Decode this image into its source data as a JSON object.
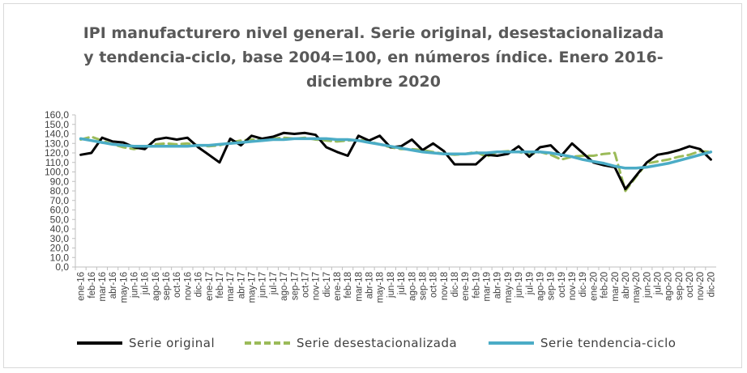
{
  "chart_data": {
    "type": "line",
    "title_lines": [
      "IPI manufacturero nivel general. Serie original, desestacionalizada",
      "y tendencia-ciclo, base 2004=100,  en números índice. Enero 2016-",
      "diciembre 2020"
    ],
    "xlabel": "",
    "ylabel": "",
    "ylim": [
      0,
      160
    ],
    "y_ticks": [
      "0,0",
      "10,0",
      "20,0",
      "30,0",
      "40,0",
      "50,0",
      "60,0",
      "70,0",
      "80,0",
      "90,0",
      "100,0",
      "110,0",
      "120,0",
      "130,0",
      "140,0",
      "150,0",
      "160,0"
    ],
    "grid": false,
    "legend_position": "bottom",
    "categories": [
      "ene-16",
      "feb-16",
      "mar-16",
      "abr-16",
      "may-16",
      "jun-16",
      "jul-16",
      "ago-16",
      "sep-16",
      "oct-16",
      "nov-16",
      "dic-16",
      "ene-17",
      "feb-17",
      "mar-17",
      "abr-17",
      "may-17",
      "jun-17",
      "jul-17",
      "ago-17",
      "sep-17",
      "oct-17",
      "nov-17",
      "dic-17",
      "ene-18",
      "feb-18",
      "mar-18",
      "abr-18",
      "may-18",
      "jun-18",
      "jul-18",
      "ago-18",
      "sep-18",
      "oct-18",
      "nov-18",
      "dic-18",
      "ene-19",
      "feb-19",
      "mar-19",
      "abr-19",
      "may-19",
      "jun-19",
      "jul-19",
      "ago-19",
      "sep-19",
      "oct-19",
      "nov-19",
      "dic-19",
      "ene-20",
      "feb-20",
      "mar-20",
      "abr-20",
      "may-20",
      "jun-20",
      "jul-20",
      "ago-20",
      "sep-20",
      "oct-20",
      "nov-20",
      "dic-20"
    ],
    "series": [
      {
        "name": "Serie original",
        "color": "#000000",
        "dash": "solid",
        "values": [
          118,
          120,
          136,
          132,
          131,
          126,
          124,
          134,
          136,
          134,
          136,
          126,
          118,
          110,
          135,
          128,
          138,
          135,
          137,
          141,
          140,
          141,
          139,
          126,
          121,
          117,
          138,
          133,
          138,
          126,
          127,
          134,
          123,
          130,
          122,
          108,
          108,
          108,
          118,
          117,
          119,
          127,
          116,
          126,
          128,
          117,
          130,
          120,
          110,
          107,
          105,
          82,
          96,
          110,
          118,
          120,
          123,
          127,
          124,
          113
        ],
        "bar_axis_labels_note": ""
      },
      {
        "name": "Serie desestacionalizada",
        "color": "#9bbb59",
        "dash": "dashed",
        "values": [
          134,
          137,
          133,
          129,
          126,
          124,
          127,
          129,
          130,
          129,
          130,
          128,
          127,
          128,
          131,
          133,
          134,
          134,
          135,
          136,
          135,
          136,
          134,
          133,
          132,
          133,
          134,
          132,
          129,
          126,
          124,
          124,
          123,
          121,
          119,
          118,
          119,
          121,
          116,
          121,
          122,
          121,
          118,
          121,
          118,
          113,
          116,
          117,
          117,
          119,
          120,
          80,
          95,
          109,
          111,
          113,
          116,
          118,
          122,
          121
        ]
      },
      {
        "name": "Serie tendencia-ciclo",
        "color": "#4bacc6",
        "dash": "solid",
        "values": [
          135,
          133,
          131,
          129,
          128,
          127,
          127,
          127,
          127,
          127,
          127,
          128,
          128,
          129,
          130,
          131,
          132,
          133,
          134,
          134,
          135,
          135,
          135,
          135,
          134,
          134,
          133,
          131,
          129,
          127,
          125,
          123,
          121,
          120,
          119,
          119,
          119,
          120,
          120,
          121,
          121,
          121,
          121,
          121,
          120,
          118,
          116,
          113,
          111,
          109,
          106,
          104,
          104,
          105,
          107,
          109,
          112,
          115,
          118,
          121
        ]
      }
    ]
  }
}
